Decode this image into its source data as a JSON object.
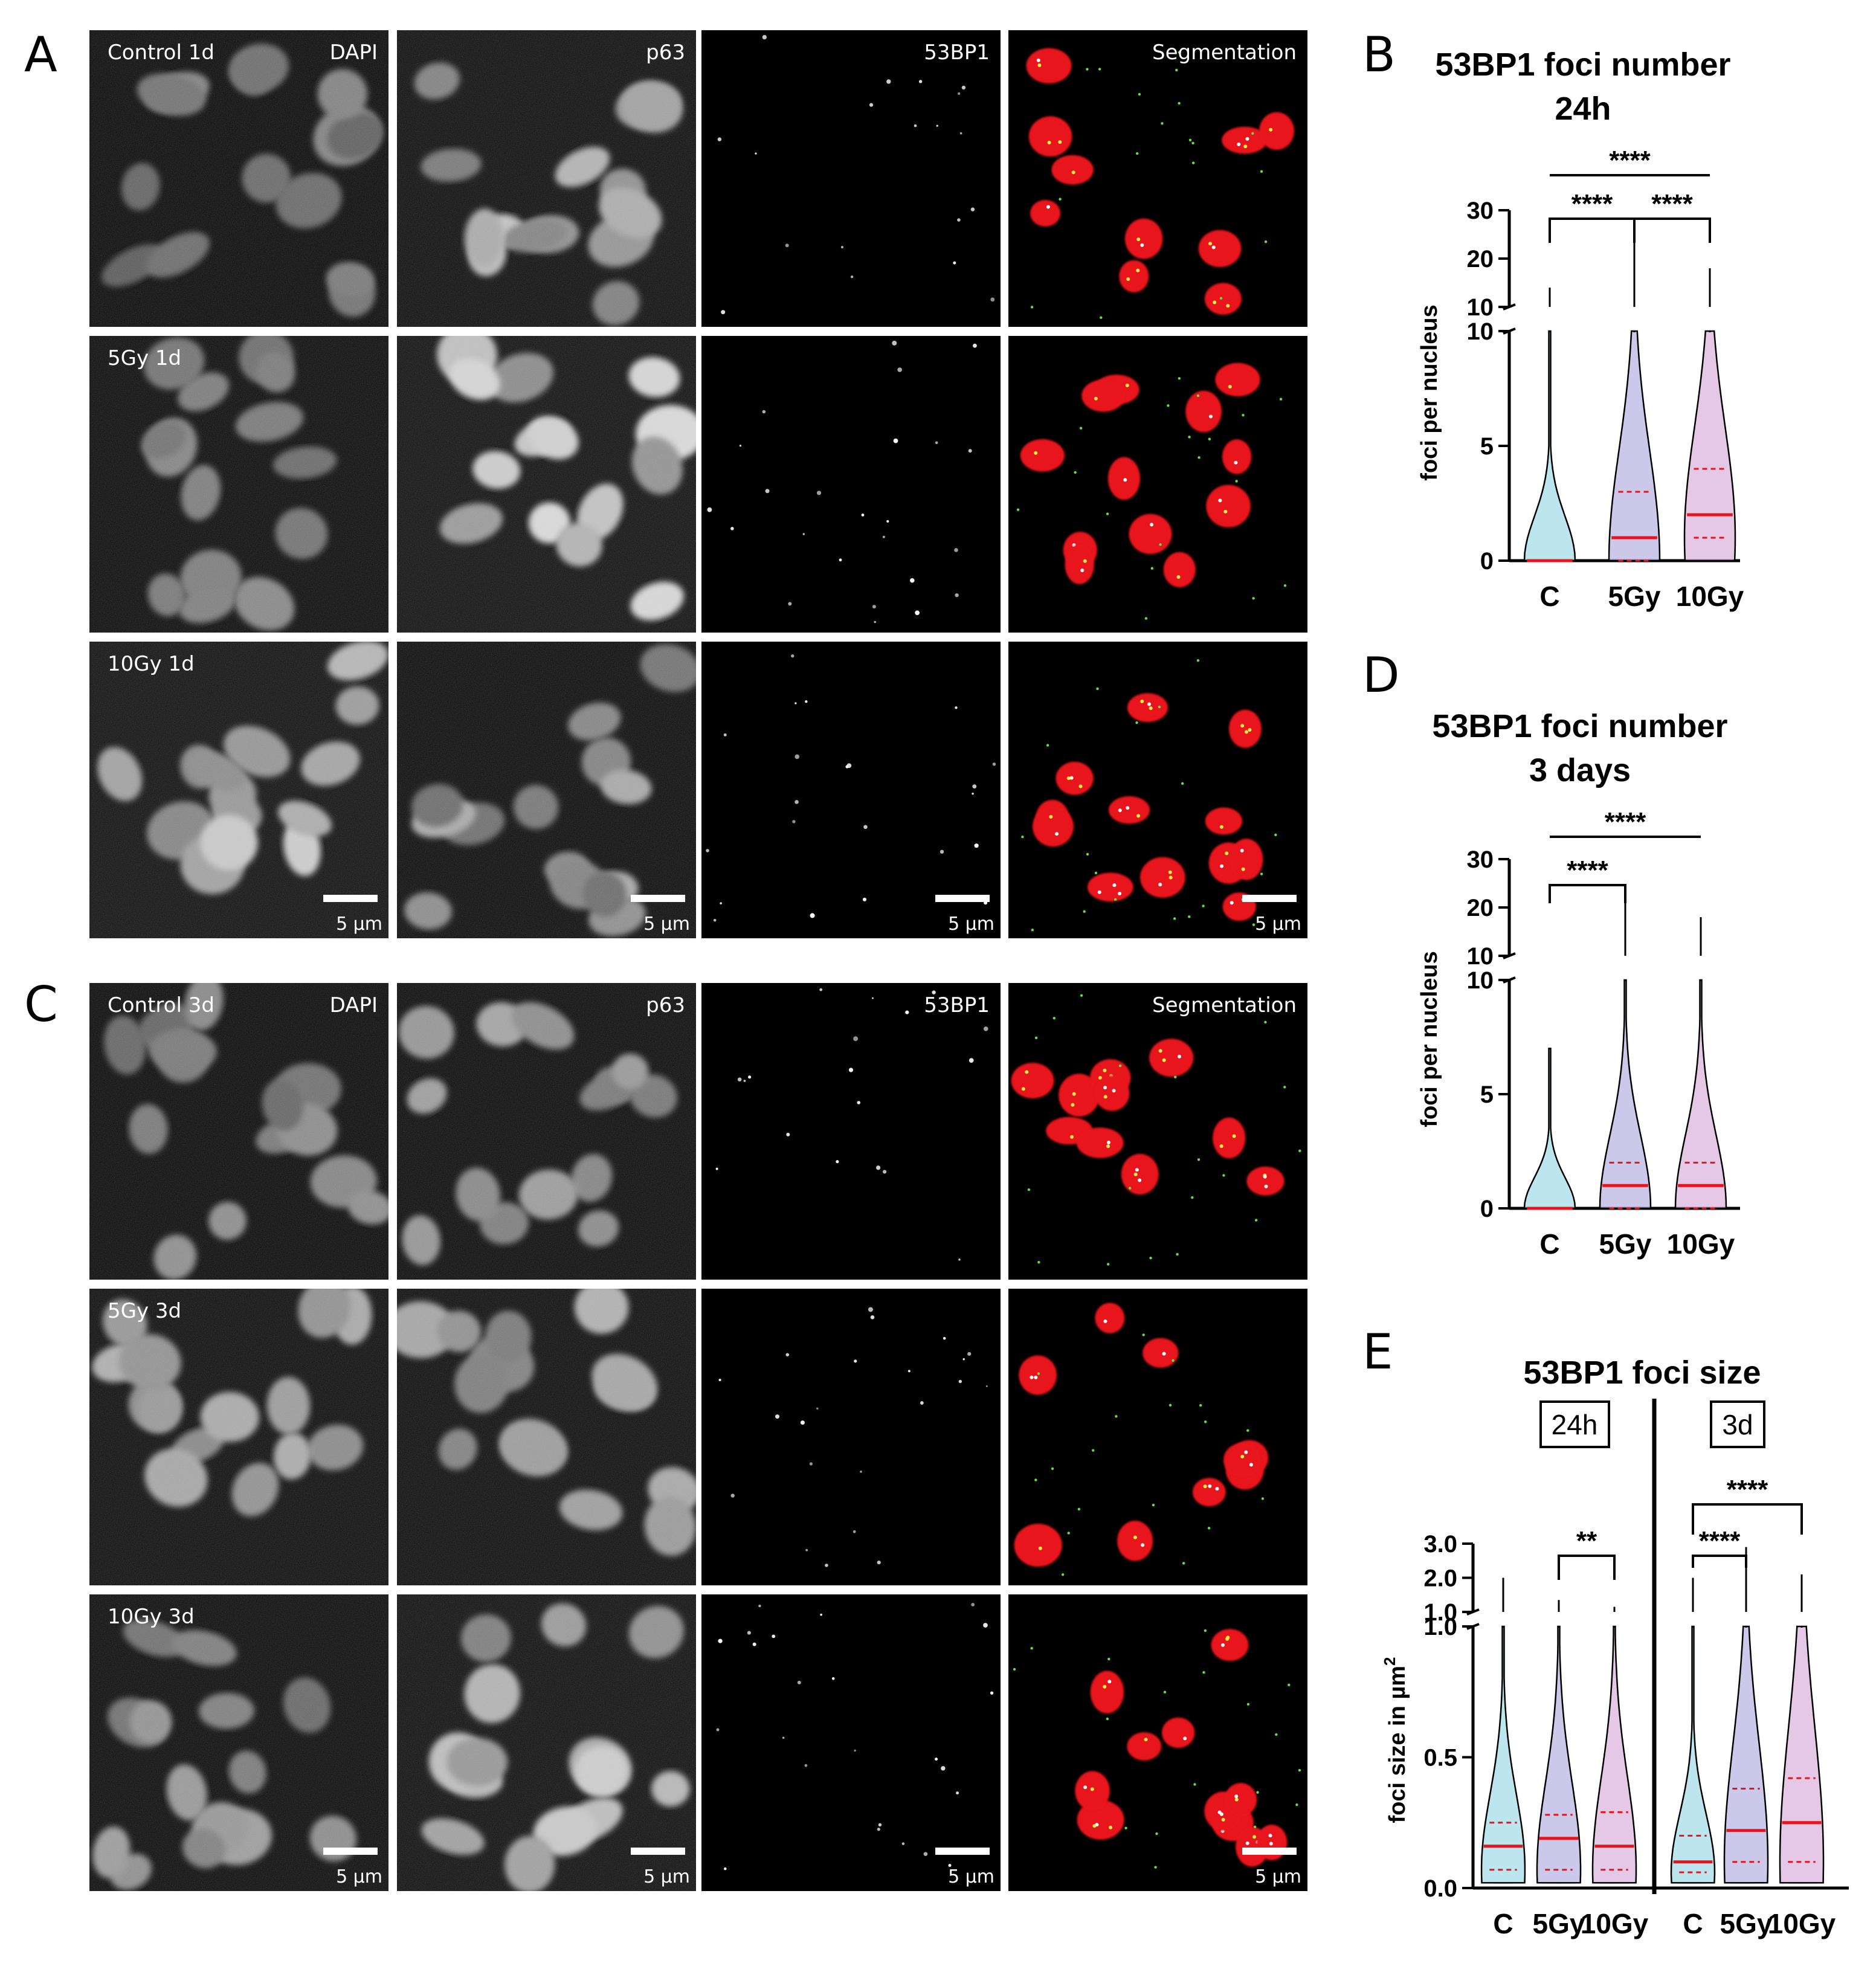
{
  "panels": {
    "a": "A",
    "b": "B",
    "c": "C",
    "d": "D",
    "e": "E"
  },
  "colors": {
    "control": "#a6dce8",
    "gy5": "#b9b6e3",
    "gy10": "#dcb4dd",
    "median": "#e8141a",
    "nucleus": "#e8141a",
    "focus_green": "#66dd44",
    "focus_yellow": "#f4ee44"
  },
  "micro": {
    "channels": [
      "DAPI",
      "p63",
      "53BP1",
      "Segmentation"
    ],
    "scale_bar": "5 µm",
    "panel_a_rows": [
      "Control 1d",
      "5Gy 1d",
      "10Gy 1d"
    ],
    "panel_c_rows": [
      "Control 3d",
      "5Gy 3d",
      "10Gy 3d"
    ],
    "brightness": {
      "panel_a": [
        [
          0.28,
          0.55,
          0.05,
          0.0
        ],
        [
          0.36,
          0.62,
          0.07,
          0.0
        ],
        [
          0.62,
          0.42,
          0.06,
          0.0
        ]
      ],
      "panel_c": [
        [
          0.34,
          0.4,
          0.04,
          0.0
        ],
        [
          0.48,
          0.46,
          0.06,
          0.0
        ],
        [
          0.4,
          0.58,
          0.07,
          0.0
        ]
      ]
    }
  },
  "chart_data": [
    {
      "id": "B",
      "type": "violin",
      "title": [
        "53BP1 foci number",
        "24h"
      ],
      "ylabel": "foci per nucleus",
      "categories": [
        "C",
        "5Gy",
        "10Gy"
      ],
      "y_axis_break": {
        "lower": [
          0,
          10
        ],
        "upper": [
          10,
          30
        ]
      },
      "yticks_lower": [
        "0",
        "5",
        "10"
      ],
      "yticks_upper": [
        "10",
        "20",
        "30"
      ],
      "series": [
        {
          "category": "C",
          "min": 0,
          "q1": 0,
          "median": 0,
          "q3": 0,
          "max": 14
        },
        {
          "category": "5Gy",
          "min": 0,
          "q1": 0,
          "median": 1,
          "q3": 3,
          "max": 24
        },
        {
          "category": "10Gy",
          "min": 0,
          "q1": 1,
          "median": 2,
          "q3": 4,
          "max": 18
        }
      ],
      "significance": [
        {
          "pair": [
            "C",
            "10Gy"
          ],
          "label": "****"
        },
        {
          "pair": [
            "C",
            "5Gy"
          ],
          "label": "****"
        },
        {
          "pair": [
            "5Gy",
            "10Gy"
          ],
          "label": "****"
        }
      ]
    },
    {
      "id": "D",
      "type": "violin",
      "title": [
        "53BP1 foci number",
        "3 days"
      ],
      "ylabel": "foci per nucleus",
      "categories": [
        "C",
        "5Gy",
        "10Gy"
      ],
      "y_axis_break": {
        "lower": [
          0,
          10
        ],
        "upper": [
          10,
          30
        ]
      },
      "yticks_lower": [
        "0",
        "5",
        "10"
      ],
      "yticks_upper": [
        "10",
        "20",
        "30"
      ],
      "series": [
        {
          "category": "C",
          "min": 0,
          "q1": 0,
          "median": 0,
          "q3": 0,
          "max": 7
        },
        {
          "category": "5Gy",
          "min": 0,
          "q1": 0,
          "median": 1,
          "q3": 2,
          "max": 24
        },
        {
          "category": "10Gy",
          "min": 0,
          "q1": 0,
          "median": 1,
          "q3": 2,
          "max": 18
        }
      ],
      "significance": [
        {
          "pair": [
            "C",
            "10Gy"
          ],
          "label": "****"
        },
        {
          "pair": [
            "C",
            "5Gy"
          ],
          "label": "****"
        }
      ]
    },
    {
      "id": "E",
      "type": "violin",
      "title": [
        "53BP1 foci size"
      ],
      "ylabel": "foci size in µm",
      "ylabel_sup": "2",
      "groups": [
        "24h",
        "3d"
      ],
      "categories": [
        "C",
        "5Gy",
        "10Gy",
        "C",
        "5Gy",
        "10Gy"
      ],
      "y_axis_break": {
        "lower": [
          0,
          1.0
        ],
        "upper": [
          1.0,
          3.0
        ]
      },
      "yticks_lower": [
        "0.0",
        "0.5",
        "1.0"
      ],
      "yticks_upper": [
        "1.0",
        "2.0",
        "3.0"
      ],
      "series": [
        {
          "group": "24h",
          "category": "C",
          "min": 0.02,
          "q1": 0.07,
          "median": 0.16,
          "q3": 0.25,
          "max": 2.0
        },
        {
          "group": "24h",
          "category": "5Gy",
          "min": 0.02,
          "q1": 0.07,
          "median": 0.19,
          "q3": 0.28,
          "max": 1.35
        },
        {
          "group": "24h",
          "category": "10Gy",
          "min": 0.02,
          "q1": 0.07,
          "median": 0.16,
          "q3": 0.29,
          "max": 1.15
        },
        {
          "group": "3d",
          "category": "C",
          "min": 0.02,
          "q1": 0.06,
          "median": 0.1,
          "q3": 0.2,
          "max": 2.0
        },
        {
          "group": "3d",
          "category": "5Gy",
          "min": 0.02,
          "q1": 0.1,
          "median": 0.22,
          "q3": 0.38,
          "max": 2.9
        },
        {
          "group": "3d",
          "category": "10Gy",
          "min": 0.02,
          "q1": 0.1,
          "median": 0.25,
          "q3": 0.42,
          "max": 2.1
        }
      ],
      "significance": [
        {
          "group": "24h",
          "pair": [
            "5Gy",
            "10Gy"
          ],
          "label": "**"
        },
        {
          "group": "3d",
          "pair": [
            "C",
            "10Gy"
          ],
          "label": "****"
        },
        {
          "group": "3d",
          "pair": [
            "C",
            "5Gy"
          ],
          "label": "****"
        }
      ]
    }
  ]
}
